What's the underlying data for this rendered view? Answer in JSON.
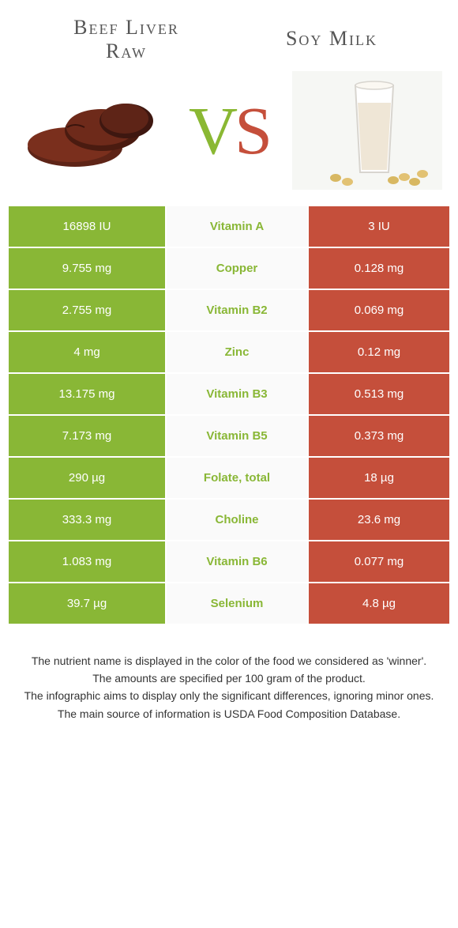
{
  "colors": {
    "left": "#89b736",
    "right": "#c54f3b",
    "mid_bg": "#fafafa"
  },
  "header": {
    "left_title_line1": "Beef Liver",
    "left_title_line2": "Raw",
    "right_title": "Soy Milk",
    "vs_v": "V",
    "vs_s": "S"
  },
  "rows": [
    {
      "nutrient": "Vitamin A",
      "left": "16898 IU",
      "right": "3 IU",
      "winner": "left"
    },
    {
      "nutrient": "Copper",
      "left": "9.755 mg",
      "right": "0.128 mg",
      "winner": "left"
    },
    {
      "nutrient": "Vitamin B2",
      "left": "2.755 mg",
      "right": "0.069 mg",
      "winner": "left"
    },
    {
      "nutrient": "Zinc",
      "left": "4 mg",
      "right": "0.12 mg",
      "winner": "left"
    },
    {
      "nutrient": "Vitamin B3",
      "left": "13.175 mg",
      "right": "0.513 mg",
      "winner": "left"
    },
    {
      "nutrient": "Vitamin B5",
      "left": "7.173 mg",
      "right": "0.373 mg",
      "winner": "left"
    },
    {
      "nutrient": "Folate, total",
      "left": "290 µg",
      "right": "18 µg",
      "winner": "left"
    },
    {
      "nutrient": "Choline",
      "left": "333.3 mg",
      "right": "23.6 mg",
      "winner": "left"
    },
    {
      "nutrient": "Vitamin B6",
      "left": "1.083 mg",
      "right": "0.077 mg",
      "winner": "left"
    },
    {
      "nutrient": "Selenium",
      "left": "39.7 µg",
      "right": "4.8 µg",
      "winner": "left"
    }
  ],
  "footnotes": [
    "The nutrient name is displayed in the color of the food we considered as 'winner'.",
    "The amounts are specified per 100 gram of the product.",
    "The infographic aims to display only the significant differences, ignoring minor ones.",
    "The main source of information is USDA Food Composition Database."
  ]
}
